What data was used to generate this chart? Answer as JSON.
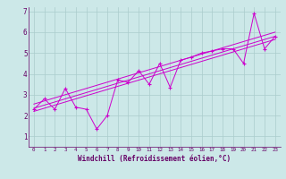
{
  "xlabel": "Windchill (Refroidissement éolien,°C)",
  "xlim": [
    -0.5,
    23.5
  ],
  "ylim": [
    0.5,
    7.2
  ],
  "xticks": [
    0,
    1,
    2,
    3,
    4,
    5,
    6,
    7,
    8,
    9,
    10,
    11,
    12,
    13,
    14,
    15,
    16,
    17,
    18,
    19,
    20,
    21,
    22,
    23
  ],
  "yticks": [
    1,
    2,
    3,
    4,
    5,
    6,
    7
  ],
  "background_color": "#cce8e8",
  "grid_color": "#aacccc",
  "line_color": "#cc00cc",
  "x_data": [
    0,
    1,
    2,
    3,
    4,
    5,
    6,
    7,
    8,
    9,
    10,
    11,
    12,
    13,
    14,
    15,
    16,
    17,
    18,
    19,
    20,
    21,
    22,
    23
  ],
  "y_data": [
    2.3,
    2.8,
    2.3,
    3.3,
    2.4,
    2.3,
    1.35,
    2.0,
    3.7,
    3.6,
    4.15,
    3.5,
    4.5,
    3.35,
    4.65,
    4.8,
    5.0,
    5.1,
    5.2,
    5.2,
    4.5,
    6.9,
    5.2,
    5.8
  ],
  "reg_upper": [
    2.55,
    2.7,
    2.85,
    3.0,
    3.15,
    3.3,
    3.45,
    3.6,
    3.75,
    3.9,
    4.05,
    4.2,
    4.35,
    4.5,
    4.65,
    4.8,
    4.95,
    5.1,
    5.25,
    5.4,
    5.55,
    5.7,
    5.85,
    6.0
  ],
  "reg_mid": [
    2.35,
    2.5,
    2.65,
    2.8,
    2.95,
    3.1,
    3.25,
    3.4,
    3.55,
    3.7,
    3.85,
    4.0,
    4.15,
    4.3,
    4.45,
    4.6,
    4.75,
    4.9,
    5.05,
    5.2,
    5.35,
    5.5,
    5.65,
    5.8
  ],
  "reg_lower": [
    2.2,
    2.35,
    2.5,
    2.65,
    2.8,
    2.95,
    3.1,
    3.25,
    3.4,
    3.55,
    3.7,
    3.85,
    4.0,
    4.15,
    4.3,
    4.45,
    4.6,
    4.75,
    4.9,
    5.05,
    5.2,
    5.35,
    5.5,
    5.65
  ]
}
